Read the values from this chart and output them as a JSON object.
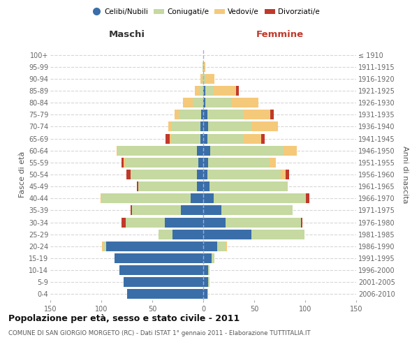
{
  "age_groups": [
    "0-4",
    "5-9",
    "10-14",
    "15-19",
    "20-24",
    "25-29",
    "30-34",
    "35-39",
    "40-44",
    "45-49",
    "50-54",
    "55-59",
    "60-64",
    "65-69",
    "70-74",
    "75-79",
    "80-84",
    "85-89",
    "90-94",
    "95-99",
    "100+"
  ],
  "birth_years": [
    "2006-2010",
    "2001-2005",
    "1996-2000",
    "1991-1995",
    "1986-1990",
    "1981-1985",
    "1976-1980",
    "1971-1975",
    "1966-1970",
    "1961-1965",
    "1956-1960",
    "1951-1955",
    "1946-1950",
    "1941-1945",
    "1936-1940",
    "1931-1935",
    "1926-1930",
    "1921-1925",
    "1916-1920",
    "1911-1915",
    "≤ 1910"
  ],
  "male_celibi": [
    75,
    78,
    82,
    87,
    95,
    30,
    38,
    22,
    12,
    6,
    6,
    5,
    6,
    3,
    3,
    2,
    0,
    0,
    0,
    0,
    0
  ],
  "male_coniugati": [
    0,
    0,
    0,
    0,
    3,
    14,
    38,
    48,
    88,
    58,
    65,
    72,
    78,
    28,
    28,
    22,
    10,
    4,
    1,
    1,
    0
  ],
  "male_vedovi": [
    0,
    0,
    0,
    0,
    1,
    0,
    0,
    0,
    1,
    0,
    0,
    1,
    1,
    2,
    3,
    4,
    10,
    4,
    2,
    0,
    0
  ],
  "male_divorziati": [
    0,
    0,
    0,
    0,
    0,
    0,
    4,
    1,
    0,
    1,
    4,
    2,
    0,
    4,
    0,
    0,
    0,
    0,
    0,
    0,
    0
  ],
  "female_nubili": [
    4,
    5,
    5,
    8,
    14,
    47,
    22,
    18,
    10,
    6,
    4,
    5,
    7,
    4,
    5,
    4,
    2,
    2,
    0,
    0,
    0
  ],
  "female_coniugate": [
    1,
    1,
    1,
    3,
    8,
    52,
    74,
    70,
    90,
    76,
    72,
    60,
    72,
    35,
    42,
    36,
    26,
    8,
    3,
    1,
    0
  ],
  "female_vedove": [
    0,
    0,
    0,
    0,
    1,
    0,
    0,
    0,
    1,
    1,
    5,
    6,
    13,
    18,
    26,
    26,
    26,
    22,
    8,
    1,
    0
  ],
  "female_divorziate": [
    0,
    0,
    0,
    0,
    0,
    0,
    1,
    0,
    3,
    0,
    3,
    0,
    0,
    3,
    0,
    3,
    0,
    3,
    0,
    0,
    0
  ],
  "colors_celibi": "#3a6ea8",
  "colors_coniugati": "#c5d9a0",
  "colors_vedovi": "#f5c97a",
  "colors_divorziati": "#c0392b",
  "xlim": 150,
  "title": "Popolazione per età, sesso e stato civile - 2011",
  "subtitle": "COMUNE DI SAN GIORGIO MORGETO (RC) - Dati ISTAT 1° gennaio 2011 - Elaborazione TUTTITALIA.IT",
  "ylabel_left": "Fasce di età",
  "ylabel_right": "Anni di nascita",
  "legend_labels": [
    "Celibi/Nubili",
    "Coniugati/e",
    "Vedovi/e",
    "Divorziati/e"
  ],
  "maschi_label": "Maschi",
  "femmine_label": "Femmine"
}
